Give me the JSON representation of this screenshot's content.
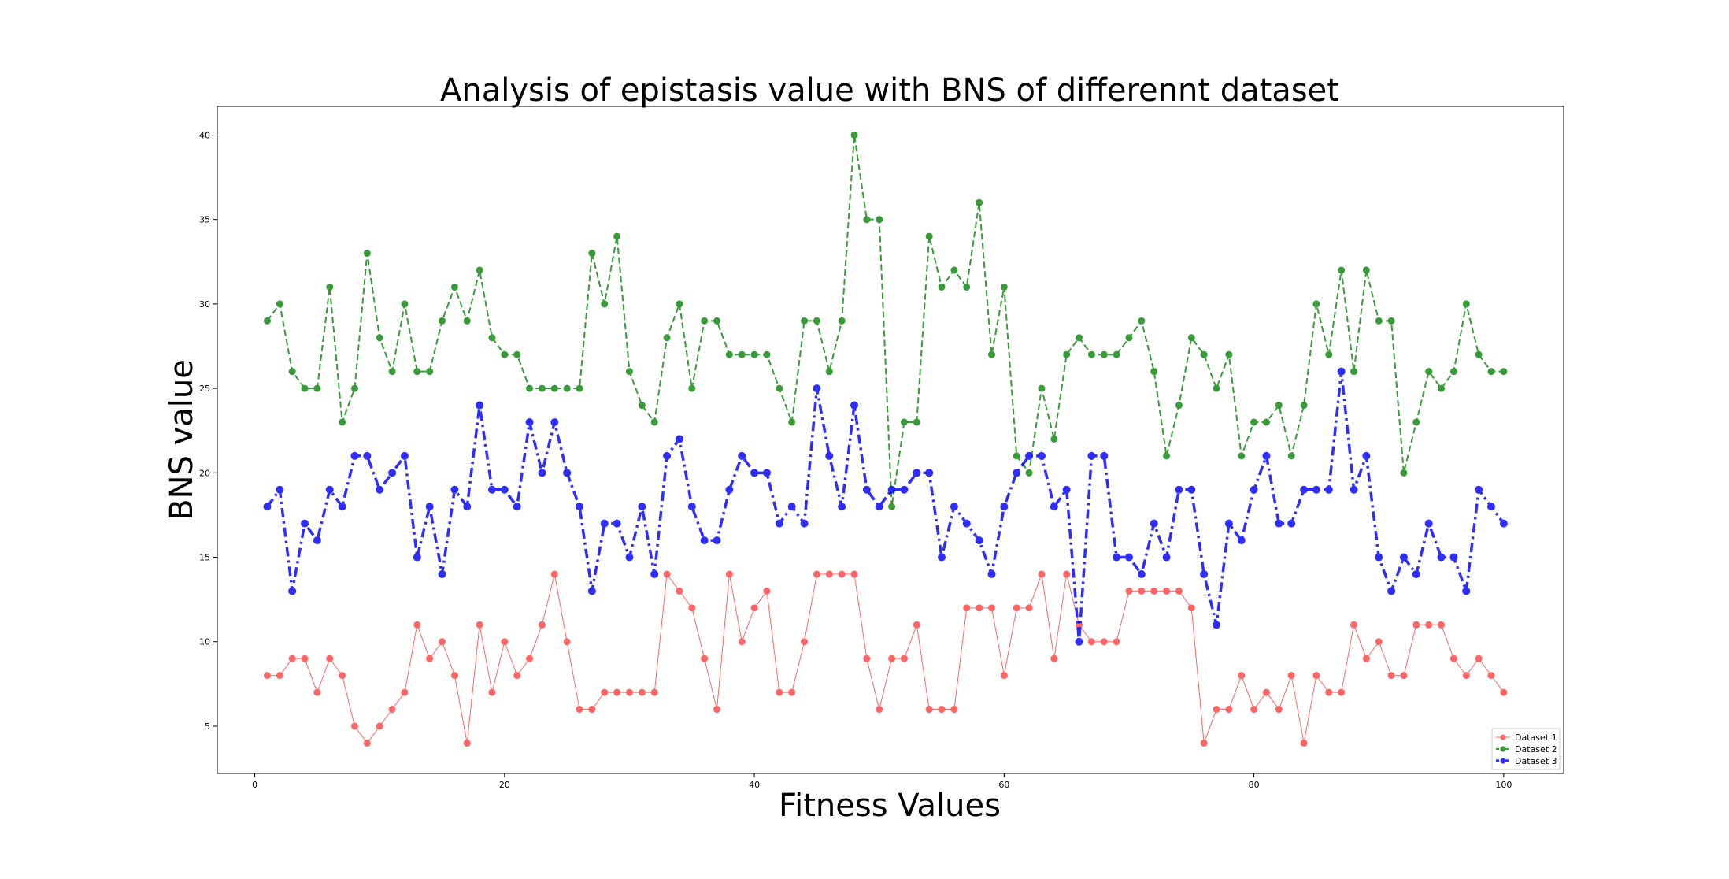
{
  "chart_data": {
    "type": "line",
    "title": "Analysis of epistasis value with BNS of differennt dataset",
    "xlabel": "Fitness Values",
    "ylabel": "BNS value",
    "xlim": [
      -3,
      104.8
    ],
    "ylim": [
      2.2,
      41.7
    ],
    "x_ticks": [
      0,
      20,
      40,
      60,
      80,
      100
    ],
    "y_ticks": [
      5,
      10,
      15,
      20,
      25,
      30,
      35,
      40
    ],
    "grid": false,
    "legend_position": "lower-right",
    "x": [
      1,
      2,
      3,
      4,
      5,
      6,
      7,
      8,
      9,
      10,
      11,
      12,
      13,
      14,
      15,
      16,
      17,
      18,
      19,
      20,
      21,
      22,
      23,
      24,
      25,
      26,
      27,
      28,
      29,
      30,
      31,
      32,
      33,
      34,
      35,
      36,
      37,
      38,
      39,
      40,
      41,
      42,
      43,
      44,
      45,
      46,
      47,
      48,
      49,
      50,
      51,
      52,
      53,
      54,
      55,
      56,
      57,
      58,
      59,
      60,
      61,
      62,
      63,
      64,
      65,
      66,
      67,
      68,
      69,
      70,
      71,
      72,
      73,
      74,
      75,
      76,
      77,
      78,
      79,
      80,
      81,
      82,
      83,
      84,
      85,
      86,
      87,
      88,
      89,
      90,
      91,
      92,
      93,
      94,
      95,
      96,
      97,
      98,
      99,
      100
    ],
    "series": [
      {
        "name": "Dataset 1",
        "color": "#ff0000",
        "style": "solid-thin",
        "values": [
          8,
          8,
          9,
          9,
          7,
          9,
          8,
          5,
          4,
          5,
          6,
          7,
          11,
          9,
          10,
          8,
          4,
          11,
          7,
          10,
          8,
          9,
          11,
          14,
          10,
          6,
          6,
          7,
          7,
          7,
          7,
          7,
          14,
          13,
          12,
          9,
          6,
          14,
          10,
          12,
          13,
          7,
          7,
          10,
          14,
          14,
          14,
          14,
          9,
          6,
          9,
          9,
          11,
          6,
          6,
          6,
          12,
          12,
          12,
          8,
          12,
          12,
          14,
          9,
          14,
          11,
          10,
          10,
          10,
          13,
          13,
          13,
          13,
          13,
          12,
          4,
          6,
          6,
          8,
          6,
          7,
          6,
          8,
          4,
          8,
          7,
          7,
          11,
          9,
          10,
          8,
          8,
          11,
          11,
          11,
          9,
          8,
          9,
          8,
          7
        ]
      },
      {
        "name": "Dataset 2",
        "color": "#008000",
        "style": "dashed",
        "values": [
          29,
          30,
          26,
          25,
          25,
          31,
          23,
          25,
          33,
          28,
          26,
          30,
          26,
          26,
          29,
          31,
          29,
          32,
          28,
          27,
          27,
          25,
          25,
          25,
          25,
          25,
          33,
          30,
          34,
          26,
          24,
          23,
          28,
          30,
          25,
          29,
          29,
          27,
          27,
          27,
          27,
          25,
          23,
          29,
          29,
          26,
          29,
          40,
          35,
          35,
          18,
          23,
          23,
          34,
          31,
          32,
          31,
          36,
          27,
          31,
          21,
          20,
          25,
          22,
          27,
          28,
          27,
          27,
          27,
          28,
          29,
          26,
          21,
          24,
          28,
          27,
          25,
          27,
          21,
          23,
          23,
          24,
          21,
          24,
          30,
          27,
          32,
          26,
          32,
          29,
          29,
          20,
          23,
          26,
          25,
          26,
          30,
          27,
          26,
          26
        ]
      },
      {
        "name": "Dataset 3",
        "color": "#0000ff",
        "style": "dashdot-thick",
        "values": [
          18,
          19,
          13,
          17,
          16,
          19,
          18,
          21,
          21,
          19,
          20,
          21,
          15,
          18,
          14,
          19,
          18,
          24,
          19,
          19,
          18,
          23,
          20,
          23,
          20,
          18,
          13,
          17,
          17,
          15,
          18,
          14,
          21,
          22,
          18,
          16,
          16,
          19,
          21,
          20,
          20,
          17,
          18,
          17,
          25,
          21,
          18,
          24,
          19,
          18,
          19,
          19,
          20,
          20,
          15,
          18,
          17,
          16,
          14,
          18,
          20,
          21,
          21,
          18,
          19,
          10,
          21,
          21,
          15,
          15,
          14,
          17,
          15,
          19,
          19,
          14,
          11,
          17,
          16,
          19,
          21,
          17,
          17,
          19,
          19,
          19,
          26,
          19,
          21,
          15,
          13,
          15,
          14,
          17,
          15,
          15,
          13,
          19,
          18,
          17
        ]
      }
    ]
  }
}
